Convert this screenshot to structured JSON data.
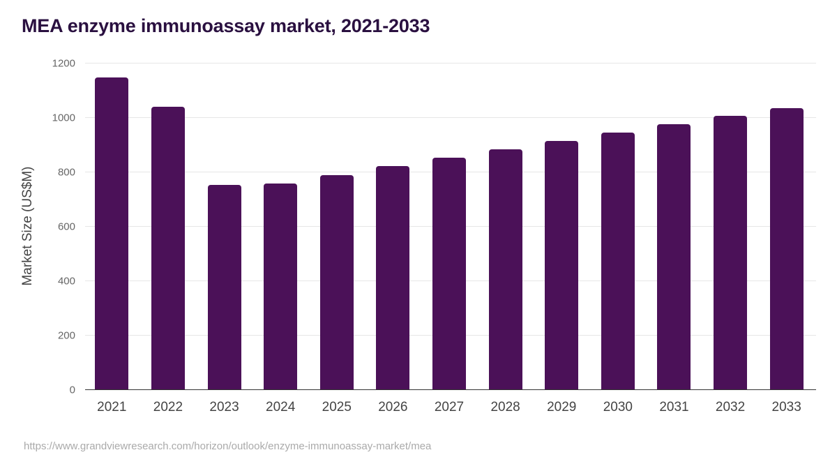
{
  "header": {
    "title": "MEA enzyme immunoassay market, 2021-2033"
  },
  "footer": {
    "source": "https://www.grandviewresearch.com/horizon/outlook/enzyme-immunoassay-market/mea"
  },
  "colors": {
    "bar": "#4b1158",
    "title": "#2a1040",
    "grid": "#e6e6e6"
  },
  "chart_data": {
    "type": "bar",
    "title": "MEA enzyme immunoassay market, 2021-2033",
    "xlabel": "",
    "ylabel": "Market Size (US$M)",
    "categories": [
      "2021",
      "2022",
      "2023",
      "2024",
      "2025",
      "2026",
      "2027",
      "2028",
      "2029",
      "2030",
      "2031",
      "2032",
      "2033"
    ],
    "values": [
      1146,
      1038,
      752,
      756,
      787,
      820,
      852,
      882,
      913,
      944,
      974,
      1005,
      1033
    ],
    "ylim": [
      0,
      1200
    ],
    "yticks": [
      "0",
      "200",
      "400",
      "600",
      "800",
      "1000",
      "1200"
    ],
    "grid": true,
    "legend": null
  }
}
